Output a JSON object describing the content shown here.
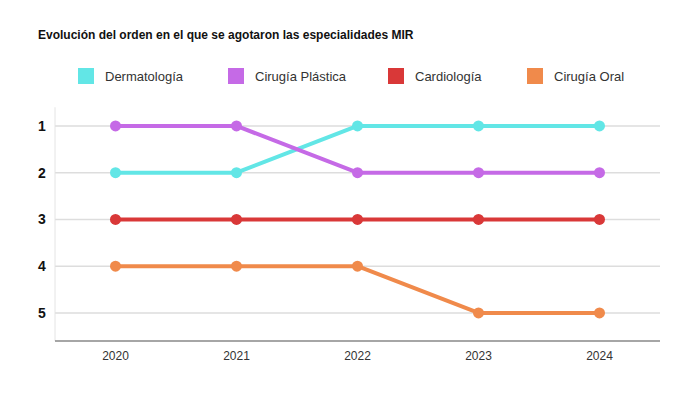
{
  "chart_data": {
    "type": "line",
    "title": "Evolución del orden en el que se agotaron las especialidades MIR",
    "categories": [
      "2020",
      "2021",
      "2022",
      "2023",
      "2024"
    ],
    "series": [
      {
        "name": "Dermatología",
        "color": "#62e6e6",
        "values": [
          2,
          2,
          1,
          1,
          1
        ]
      },
      {
        "name": "Cirugía Plástica",
        "color": "#c56ae6",
        "values": [
          1,
          1,
          2,
          2,
          2
        ]
      },
      {
        "name": "Cardiología",
        "color": "#d93838",
        "values": [
          3,
          3,
          3,
          3,
          3
        ]
      },
      {
        "name": "Cirugía Oral",
        "color": "#f08a4b",
        "values": [
          4,
          4,
          4,
          5,
          5
        ]
      }
    ],
    "ylim": [
      5.6,
      0.6
    ],
    "yticks": [
      1,
      2,
      3,
      4,
      5
    ],
    "grid": true,
    "legend": "top",
    "marker": "circle"
  }
}
